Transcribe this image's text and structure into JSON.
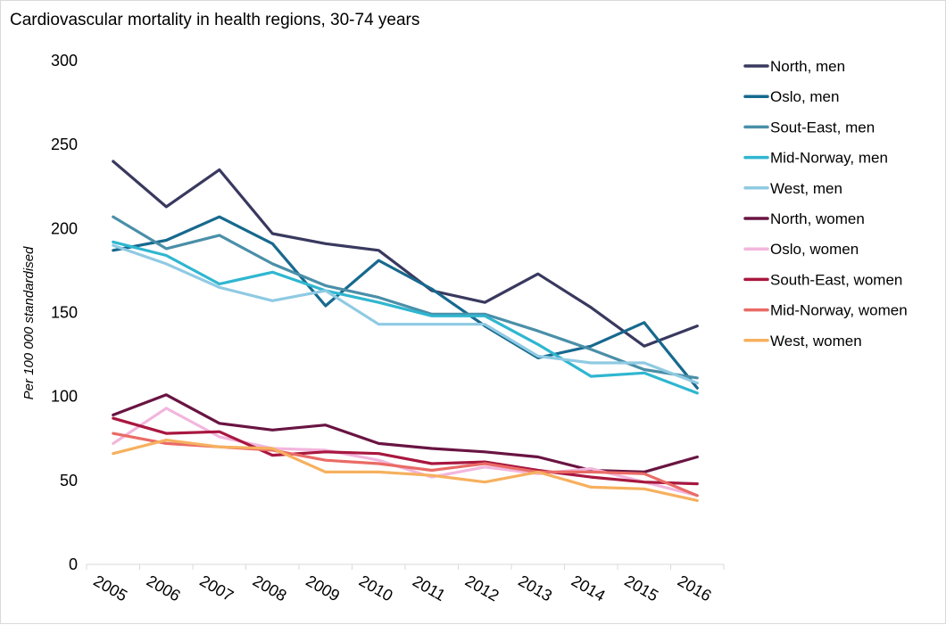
{
  "chart_data": {
    "type": "line",
    "title": "Cardiovascular mortality in health regions, 30-74 years",
    "xlabel": "",
    "ylabel": "Per 100 000 standardised",
    "ylim": [
      0,
      300
    ],
    "yticks": [
      0,
      50,
      100,
      150,
      200,
      250,
      300
    ],
    "grid": false,
    "legend_position": "right",
    "categories": [
      "2005",
      "2006",
      "2007",
      "2008",
      "2009",
      "2010",
      "2011",
      "2012",
      "2013",
      "2014",
      "2015",
      "2016"
    ],
    "series": [
      {
        "name": "North, men",
        "color": "#39395f",
        "values": [
          240,
          213,
          235,
          197,
          191,
          187,
          163,
          156,
          173,
          153,
          130,
          142
        ]
      },
      {
        "name": "Oslo, men",
        "color": "#17698e",
        "values": [
          187,
          193,
          207,
          191,
          154,
          181,
          164,
          142,
          123,
          130,
          144,
          105
        ]
      },
      {
        "name": "Sout-East, men",
        "color": "#4a8fa8",
        "values": [
          207,
          188,
          196,
          179,
          166,
          159,
          149,
          149,
          139,
          128,
          116,
          111
        ]
      },
      {
        "name": "Mid-Norway, men",
        "color": "#2fb6d0",
        "values": [
          192,
          184,
          167,
          174,
          163,
          156,
          148,
          148,
          131,
          112,
          114,
          102
        ]
      },
      {
        "name": "West, men",
        "color": "#8fcae3",
        "values": [
          190,
          179,
          165,
          157,
          163,
          143,
          143,
          143,
          124,
          120,
          120,
          108
        ]
      },
      {
        "name": "North, women",
        "color": "#691442",
        "values": [
          89,
          101,
          84,
          80,
          83,
          72,
          69,
          67,
          64,
          56,
          55,
          64
        ]
      },
      {
        "name": "Oslo, women",
        "color": "#f2b6dd",
        "values": [
          72,
          93,
          76,
          69,
          68,
          62,
          52,
          58,
          54,
          57,
          49,
          41
        ]
      },
      {
        "name": "South-East, women",
        "color": "#a8173f",
        "values": [
          87,
          78,
          79,
          65,
          67,
          66,
          60,
          61,
          56,
          52,
          49,
          48
        ]
      },
      {
        "name": "Mid-Norway, women",
        "color": "#ea6b66",
        "values": [
          78,
          72,
          70,
          68,
          62,
          60,
          56,
          60,
          55,
          55,
          54,
          41
        ]
      },
      {
        "name": "West, women",
        "color": "#f6b05e",
        "values": [
          66,
          74,
          70,
          69,
          55,
          55,
          53,
          49,
          55,
          46,
          45,
          38
        ]
      }
    ]
  }
}
